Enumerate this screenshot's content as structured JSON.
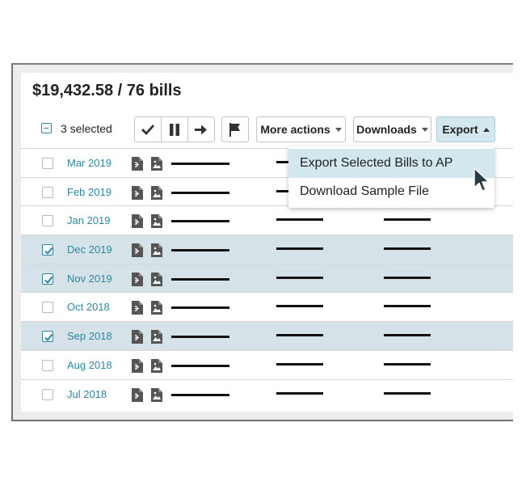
{
  "summary": {
    "total": "$19,432.58 / 76 bills"
  },
  "toolbar": {
    "selected_label": "3 selected",
    "more_actions_label": "More actions",
    "downloads_label": "Downloads",
    "export_label": "Export"
  },
  "export_menu": {
    "items": [
      {
        "label": "Export Selected Bills to AP"
      },
      {
        "label": "Download Sample File"
      }
    ]
  },
  "bills": [
    {
      "date": "Mar 2019",
      "selected": false
    },
    {
      "date": "Feb 2019",
      "selected": false
    },
    {
      "date": "Jan 2019",
      "selected": false
    },
    {
      "date": "Dec 2019",
      "selected": true
    },
    {
      "date": "Nov 2019",
      "selected": true
    },
    {
      "date": "Oct 2018",
      "selected": false
    },
    {
      "date": "Sep 2018",
      "selected": true
    },
    {
      "date": "Aug 2018",
      "selected": false
    },
    {
      "date": "Jul 2018",
      "selected": false
    }
  ],
  "colors": {
    "accent": "#2a87a1",
    "selected_row": "#d5e3e8",
    "highlight": "#d3e7ee"
  }
}
